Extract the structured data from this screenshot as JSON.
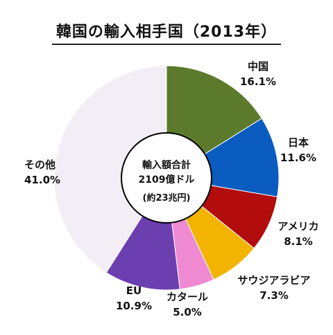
{
  "chart_data": {
    "type": "pie",
    "style": "donut",
    "title": "韓国の輸入相手国（2013年）",
    "center_text": {
      "line1": "輸入額合計",
      "line2": "2109億ドル",
      "line3": "(約23兆円)"
    },
    "series": [
      {
        "slices": [
          {
            "label": "中国",
            "value": 16.1,
            "display": "16.1%",
            "color": "#5b7a2b"
          },
          {
            "label": "日本",
            "value": 11.6,
            "display": "11.6%",
            "color": "#0a5cc0"
          },
          {
            "label": "アメリカ",
            "value": 8.1,
            "display": "8.1%",
            "color": "#b20c0c"
          },
          {
            "label": "サウジアラビア",
            "value": 7.3,
            "display": "7.3%",
            "color": "#f2b400"
          },
          {
            "label": "カタール",
            "value": 5.0,
            "display": "5.0%",
            "color": "#ef8ad2"
          },
          {
            "label": "EU",
            "value": 10.9,
            "display": "10.9%",
            "color": "#6c3fb0"
          },
          {
            "label": "その他",
            "value": 41.0,
            "display": "41.0%",
            "color": "#f3eef5"
          }
        ]
      }
    ]
  }
}
